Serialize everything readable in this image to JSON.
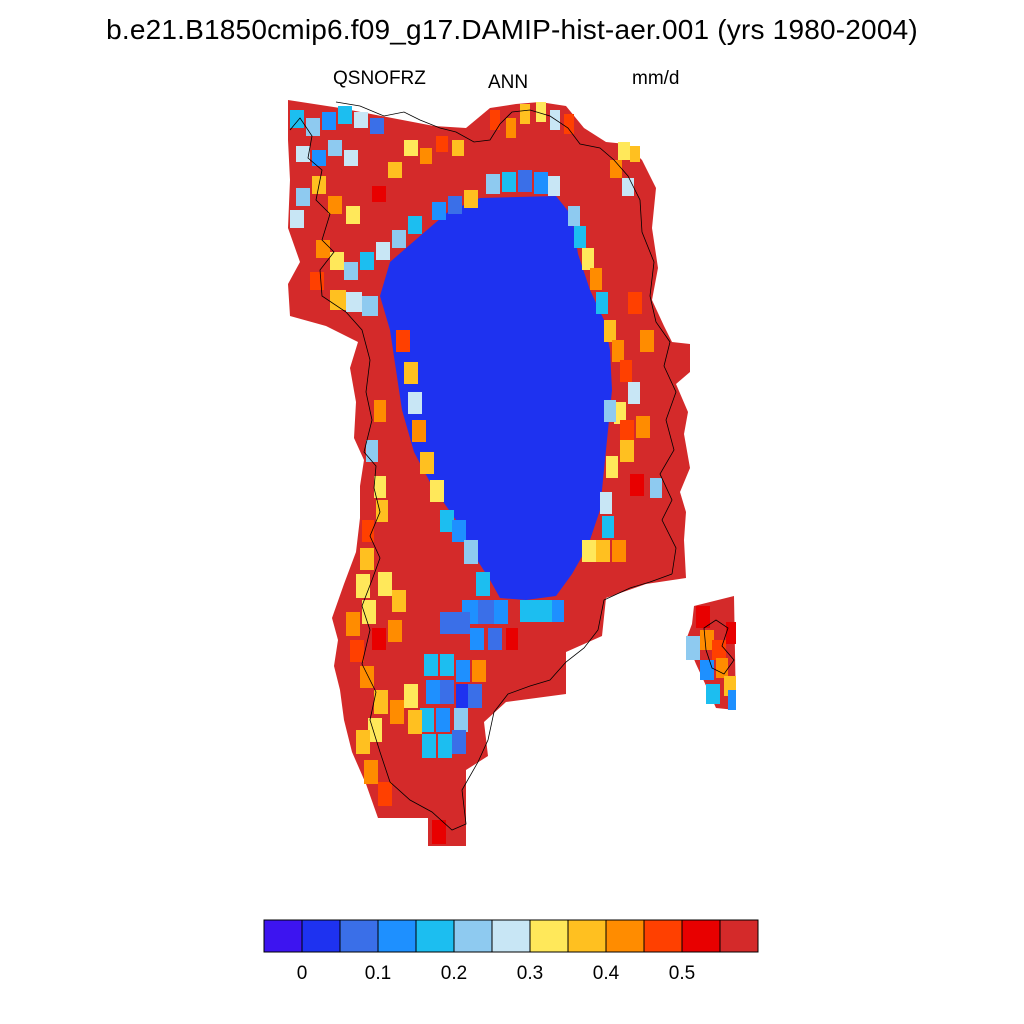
{
  "title": "b.e21.B1850cmip6.f09_g17.DAMIP-hist-aer.001 (yrs 1980-2004)",
  "subtitle": {
    "variable": "QSNOFRZ",
    "season": "ANN",
    "units": "mm/d"
  },
  "colorbar": {
    "colors": [
      "#3d14f0",
      "#1e32f0",
      "#3a6fe8",
      "#1e90ff",
      "#1cbef0",
      "#8ecaf0",
      "#c8e6f5",
      "#ffe85a",
      "#ffc020",
      "#ff8c00",
      "#ff4000",
      "#e80000",
      "#d42a2a"
    ],
    "labels": [
      "0",
      "0.1",
      "0.2",
      "0.3",
      "0.4",
      "0.5"
    ]
  },
  "map_colors": {
    "interior": "#1e32f0",
    "margin": "#d42a2a",
    "coast": "#000000"
  }
}
